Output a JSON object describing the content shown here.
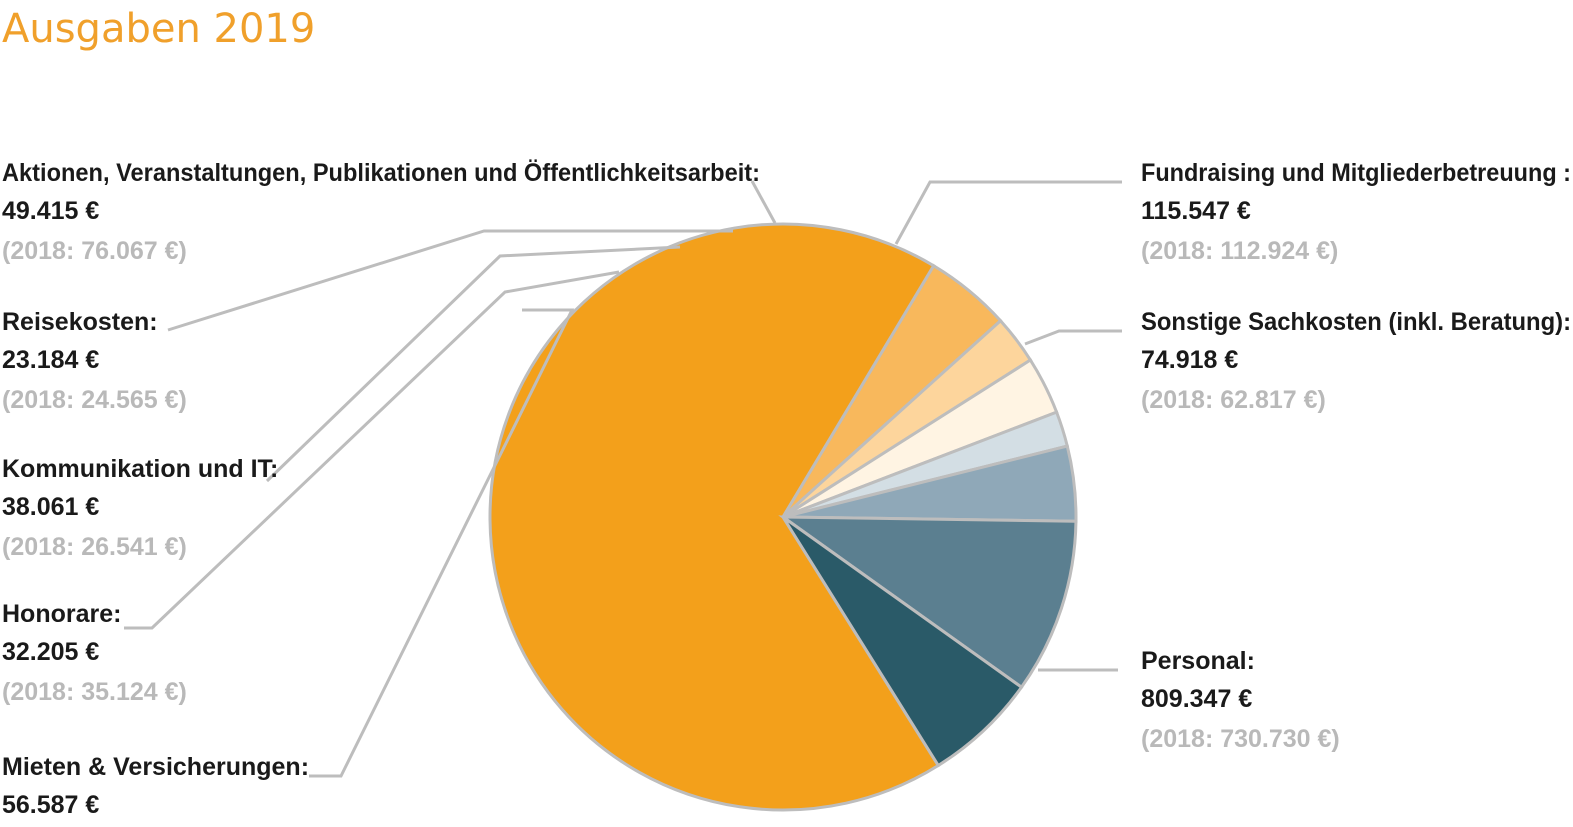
{
  "chart_data": {
    "type": "pie",
    "title": "Ausgaben 2019",
    "start_angle_deg": 58,
    "colors_note_keys": [
      "color"
    ],
    "slices": [
      {
        "name": "Personal:",
        "value": 809347,
        "value_label": "809.347 €",
        "prev_label": "(2018: 730.730 €)",
        "color": "#f3a01b"
      },
      {
        "name": "Mieten & Versicherungen:",
        "value": 56587,
        "value_label": "56.587 €",
        "prev_label": "",
        "color": "#f8b85c"
      },
      {
        "name": "Honorare:",
        "value": 32205,
        "value_label": "32.205 €",
        "prev_label": "(2018: 35.124 €)",
        "color": "#fdd59c"
      },
      {
        "name": "Kommunikation und IT:",
        "value": 38061,
        "value_label": "38.061 €",
        "prev_label": "(2018: 26.541 €)",
        "color": "#fff4e3"
      },
      {
        "name": "Reisekosten:",
        "value": 23184,
        "value_label": "23.184 €",
        "prev_label": "(2018: 24.565 €)",
        "color": "#d3dee4"
      },
      {
        "name": "Aktionen, Veranstaltungen, Publikationen und Öffentlichkeitsarbeit:",
        "value": 49415,
        "value_label": "49.415 €",
        "prev_label": "(2018: 76.067 €)",
        "color": "#8fa8b8"
      },
      {
        "name": "Fundraising und Mitgliederbetreuung :",
        "value": 115547,
        "value_label": "115.547 €",
        "prev_label": "(2018: 112.924 €)",
        "color": "#5b7f90"
      },
      {
        "name": "Sonstige Sachkosten (inkl. Beratung):",
        "value": 74918,
        "value_label": "74.918 €",
        "prev_label": "(2018: 62.817 €)",
        "color": "#2a5a68"
      }
    ]
  }
}
